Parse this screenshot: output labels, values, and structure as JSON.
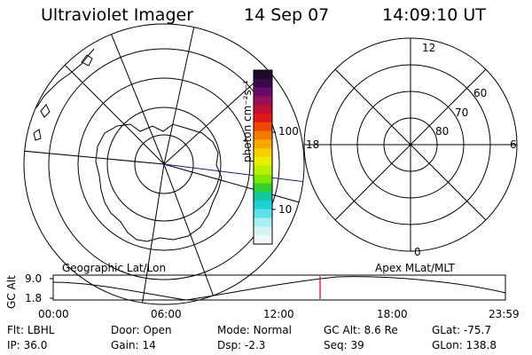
{
  "header": {
    "instrument": "Ultraviolet Imager",
    "date": "14 Sep 07",
    "time": "14:09:10 UT"
  },
  "colorbar": {
    "unit_label": "photon cm⁻²s⁻¹",
    "ticks": [
      "100",
      "10"
    ],
    "colors": [
      "#1e0a2a",
      "#3a0a48",
      "#6a0a6a",
      "#99105a",
      "#c01030",
      "#e01818",
      "#f04800",
      "#f47a00",
      "#f8a800",
      "#f8d000",
      "#e8f000",
      "#b8f000",
      "#80e800",
      "#30d030",
      "#10c8a0",
      "#20d0d8",
      "#60e0ea",
      "#a8eef2",
      "#d6f4f6",
      "#eef9fa"
    ]
  },
  "left_map": {
    "label": "Geographic Lat/Lon"
  },
  "right_grid": {
    "label": "Apex MLat/MLT",
    "mlt_labels": {
      "top": "12",
      "left": "18",
      "right": "6",
      "bottom": "0"
    },
    "mlat_labels": [
      "60",
      "70",
      "80"
    ]
  },
  "altitude_plot": {
    "axis_label": "GC Alt",
    "y_ticks": [
      "9.0",
      "1.8"
    ],
    "x_ticks": [
      "00:00",
      "06:00",
      "12:00",
      "18:00",
      "23:59"
    ],
    "current_time_marker": "14:09:10",
    "marker_color": "#e00000"
  },
  "info_panel": {
    "row1": [
      {
        "key": "Flt:",
        "value": "LBHL"
      },
      {
        "key": "Door:",
        "value": "Open"
      },
      {
        "key": "Mode:",
        "value": "Normal"
      },
      {
        "key": "GC Alt:",
        "value": "8.6 Re"
      },
      {
        "key": "GLat:",
        "value": "-75.7"
      }
    ],
    "row2": [
      {
        "key": "IP:",
        "value": "36.0"
      },
      {
        "key": "Gain:",
        "value": "14"
      },
      {
        "key": "Dsp:",
        "value": "-2.3"
      },
      {
        "key": "Seq:",
        "value": "39"
      },
      {
        "key": "GLon:",
        "value": "138.8"
      }
    ]
  }
}
